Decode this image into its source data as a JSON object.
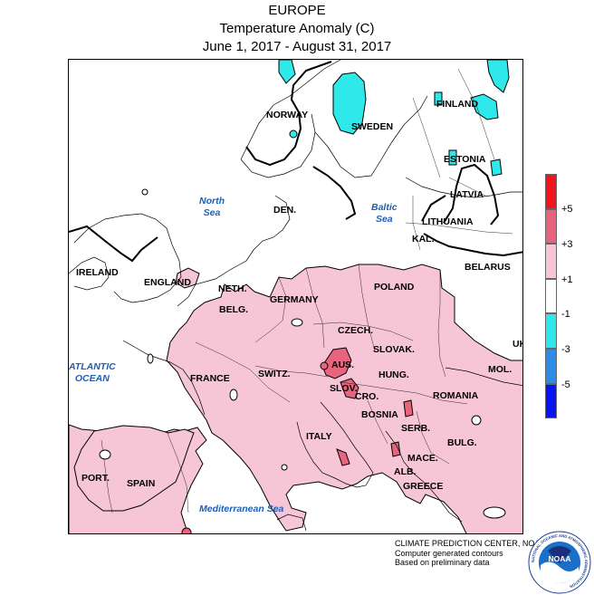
{
  "title": {
    "line1": "EUROPE",
    "line2": "Temperature Anomaly (C)",
    "line3": "June 1, 2017 - August 31, 2017"
  },
  "map_labels": {
    "countries": {
      "norway": "NORWAY",
      "sweden": "SWEDEN",
      "finland": "FINLAND",
      "estonia": "ESTONIA",
      "latvia": "LATVIA",
      "lithuania": "LITHUANIA",
      "kaliningrad": "KAL.",
      "belarus": "BELARUS",
      "denmark": "DEN.",
      "ireland": "IRELAND",
      "england": "ENGLAND",
      "netherlands": "NETH.",
      "belgium": "BELG.",
      "germany": "GERMANY",
      "poland": "POLAND",
      "czech": "CZECH.",
      "slovakia": "SLOVAK.",
      "ukraine": "UK",
      "france": "FRANCE",
      "switzerland": "SWITZ.",
      "austria": "AUS.",
      "hungary": "HUNG.",
      "moldova": "MOL.",
      "slovenia": "SLOV.",
      "croatia": "CRO.",
      "romania": "ROMANIA",
      "bosnia": "BOSNIA",
      "serbia": "SERB.",
      "italy": "ITALY",
      "bulgaria": "BULG.",
      "macedonia": "MACE.",
      "albania": "ALB.",
      "greece": "GREECE",
      "portugal": "PORT.",
      "spain": "SPAIN"
    },
    "seas": {
      "north_sea_1": "North",
      "north_sea_2": "Sea",
      "baltic_sea_1": "Baltic",
      "baltic_sea_2": "Sea",
      "atlantic_1": "ATLANTIC",
      "atlantic_2": "OCEAN",
      "mediterranean": "Mediterranean Sea"
    }
  },
  "legend": {
    "ticks": [
      "+5",
      "+3",
      "+1",
      "-1",
      "-3",
      "-5"
    ],
    "bins": [
      {
        "range": "> +5",
        "color": "#f0141e"
      },
      {
        "range": "+3 to +5",
        "color": "#e8647e"
      },
      {
        "range": "+1 to +3",
        "color": "#f7c6d6"
      },
      {
        "range": "-1 to +1",
        "color": "#ffffff"
      },
      {
        "range": "-3 to -1",
        "color": "#2ee8ea"
      },
      {
        "range": "-5 to -3",
        "color": "#2e8be6"
      },
      {
        "range": "< -5",
        "color": "#0a14f0"
      }
    ]
  },
  "colors": {
    "warm_light": "#f7c6d6",
    "warm_medium": "#e8647e",
    "warm_strong": "#f0141e",
    "cool_light": "#2ee8ea",
    "land_border": "#000000",
    "sea_label": "#1e5fb4"
  },
  "credits": {
    "line1": "CLIMATE PREDICTION CENTER, NOAA",
    "line2": "Computer generated contours",
    "line3": "Based on preliminary data"
  },
  "logo": {
    "text": "NOAA",
    "ring_text": "NATIONAL OCEANIC AND ATMOSPHERIC ADMINISTRATION"
  }
}
